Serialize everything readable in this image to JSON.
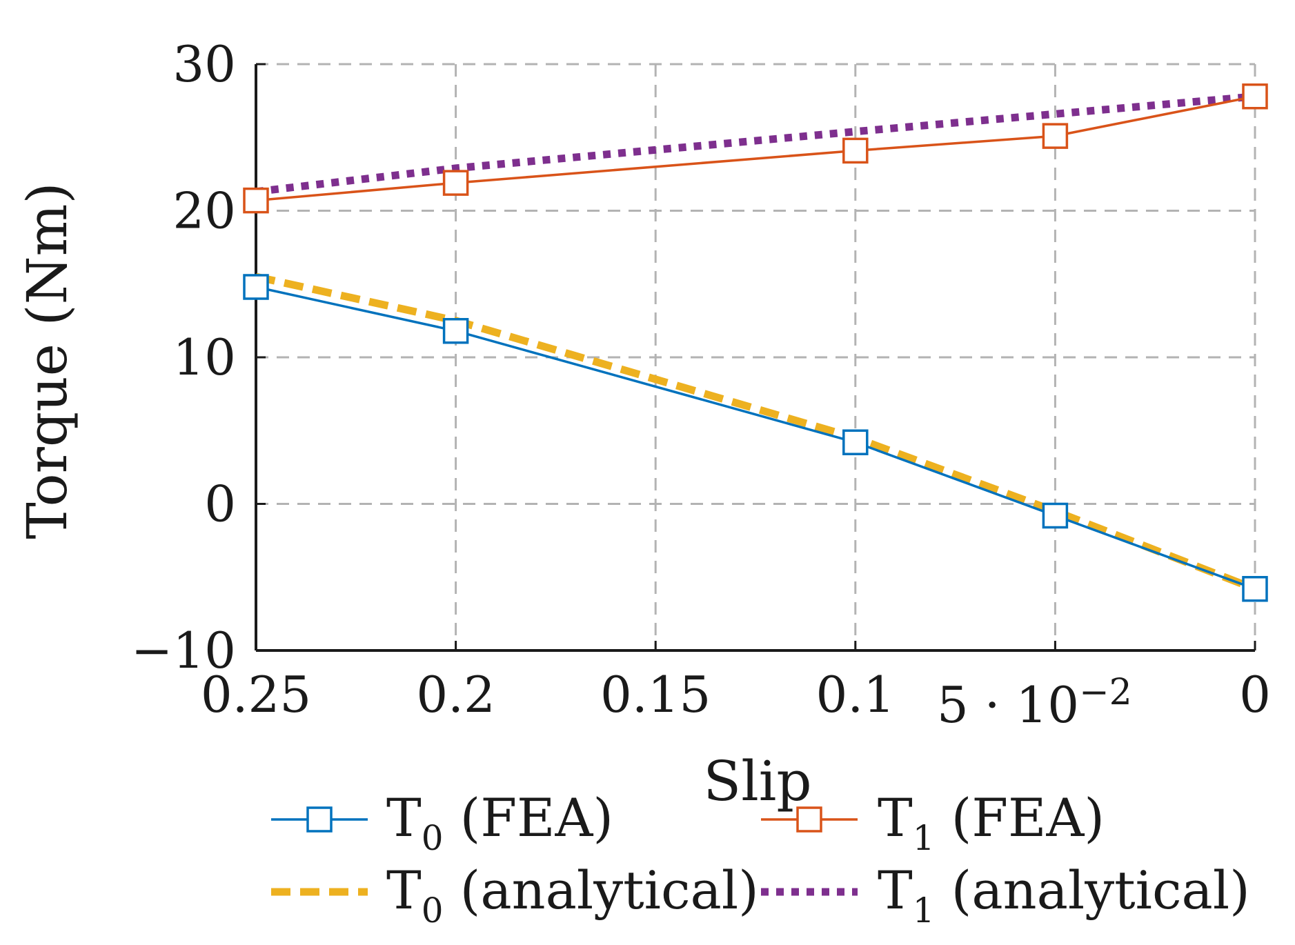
{
  "chart_data": {
    "type": "line",
    "xlabel": "Slip",
    "ylabel": "Torque (Nm)",
    "xlim": [
      0.25,
      0
    ],
    "ylim": [
      -10,
      30
    ],
    "grid": true,
    "x_ticks": [
      {
        "value": 0.25,
        "label": "0.25"
      },
      {
        "value": 0.2,
        "label": "0.2"
      },
      {
        "value": 0.15,
        "label": "0.15"
      },
      {
        "value": 0.1,
        "label": "0.1"
      },
      {
        "value": 0.05,
        "label": "5 · 10",
        "exp": "−2"
      },
      {
        "value": 0,
        "label": "0"
      }
    ],
    "y_ticks": [
      {
        "value": -10,
        "label": "−10"
      },
      {
        "value": 0,
        "label": "0"
      },
      {
        "value": 10,
        "label": "10"
      },
      {
        "value": 20,
        "label": "20"
      },
      {
        "value": 30,
        "label": "30"
      }
    ],
    "series": [
      {
        "name": "T0 (FEA)",
        "legend_main": "T",
        "legend_sub": "0",
        "legend_rest": " (FEA)",
        "color": "#0072BD",
        "style": "solid-square",
        "x": [
          0.25,
          0.2,
          0.1,
          0.05,
          0
        ],
        "y": [
          14.8,
          11.8,
          4.2,
          -0.8,
          -5.8
        ]
      },
      {
        "name": "T1 (FEA)",
        "legend_main": "T",
        "legend_sub": "1",
        "legend_rest": " (FEA)",
        "color": "#D95319",
        "style": "solid-square",
        "x": [
          0.25,
          0.2,
          0.1,
          0.05,
          0
        ],
        "y": [
          20.7,
          21.9,
          24.1,
          25.1,
          27.8
        ]
      },
      {
        "name": "T0 (analytical)",
        "legend_main": "T",
        "legend_sub": "0",
        "legend_rest": " (analytical)",
        "color": "#EDB120",
        "style": "dashed",
        "x": [
          0.25,
          0.2,
          0.1,
          0.05,
          0
        ],
        "y": [
          15.5,
          12.5,
          4.5,
          -0.5,
          -5.8
        ]
      },
      {
        "name": "T1 (analytical)",
        "legend_main": "T",
        "legend_sub": "1",
        "legend_rest": " (analytical)",
        "color": "#7E2F8E",
        "style": "dotted",
        "x": [
          0.25,
          0.2,
          0.1,
          0.05,
          0
        ],
        "y": [
          21.3,
          22.9,
          25.4,
          26.6,
          27.8
        ]
      }
    ],
    "legend_position": "bottom"
  }
}
